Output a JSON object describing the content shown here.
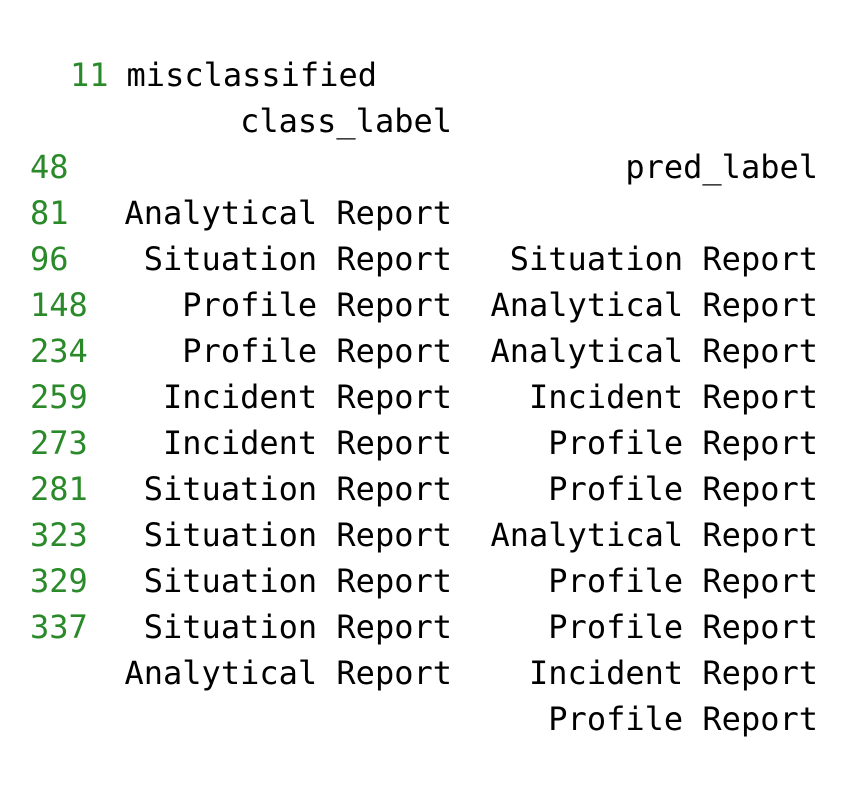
{
  "summary": {
    "count": "11",
    "label": "misclassified"
  },
  "table": {
    "columns": [
      "class_label",
      "pred_label"
    ],
    "rows": [
      {
        "index": "48",
        "class_label": "Analytical Report",
        "pred_label": "Situation Report"
      },
      {
        "index": "81",
        "class_label": "Situation Report",
        "pred_label": "Analytical Report"
      },
      {
        "index": "96",
        "class_label": "Profile Report",
        "pred_label": "Analytical Report"
      },
      {
        "index": "148",
        "class_label": "Profile Report",
        "pred_label": "Incident Report"
      },
      {
        "index": "234",
        "class_label": "Incident Report",
        "pred_label": "Profile Report"
      },
      {
        "index": "259",
        "class_label": "Incident Report",
        "pred_label": "Profile Report"
      },
      {
        "index": "273",
        "class_label": "Situation Report",
        "pred_label": "Analytical Report"
      },
      {
        "index": "281",
        "class_label": "Situation Report",
        "pred_label": "Profile Report"
      },
      {
        "index": "323",
        "class_label": "Situation Report",
        "pred_label": "Profile Report"
      },
      {
        "index": "329",
        "class_label": "Situation Report",
        "pred_label": "Incident Report"
      },
      {
        "index": "337",
        "class_label": "Analytical Report",
        "pred_label": "Profile Report"
      }
    ]
  },
  "colors": {
    "index": "#2a8a2a",
    "text": "#000000",
    "background": "#ffffff"
  }
}
